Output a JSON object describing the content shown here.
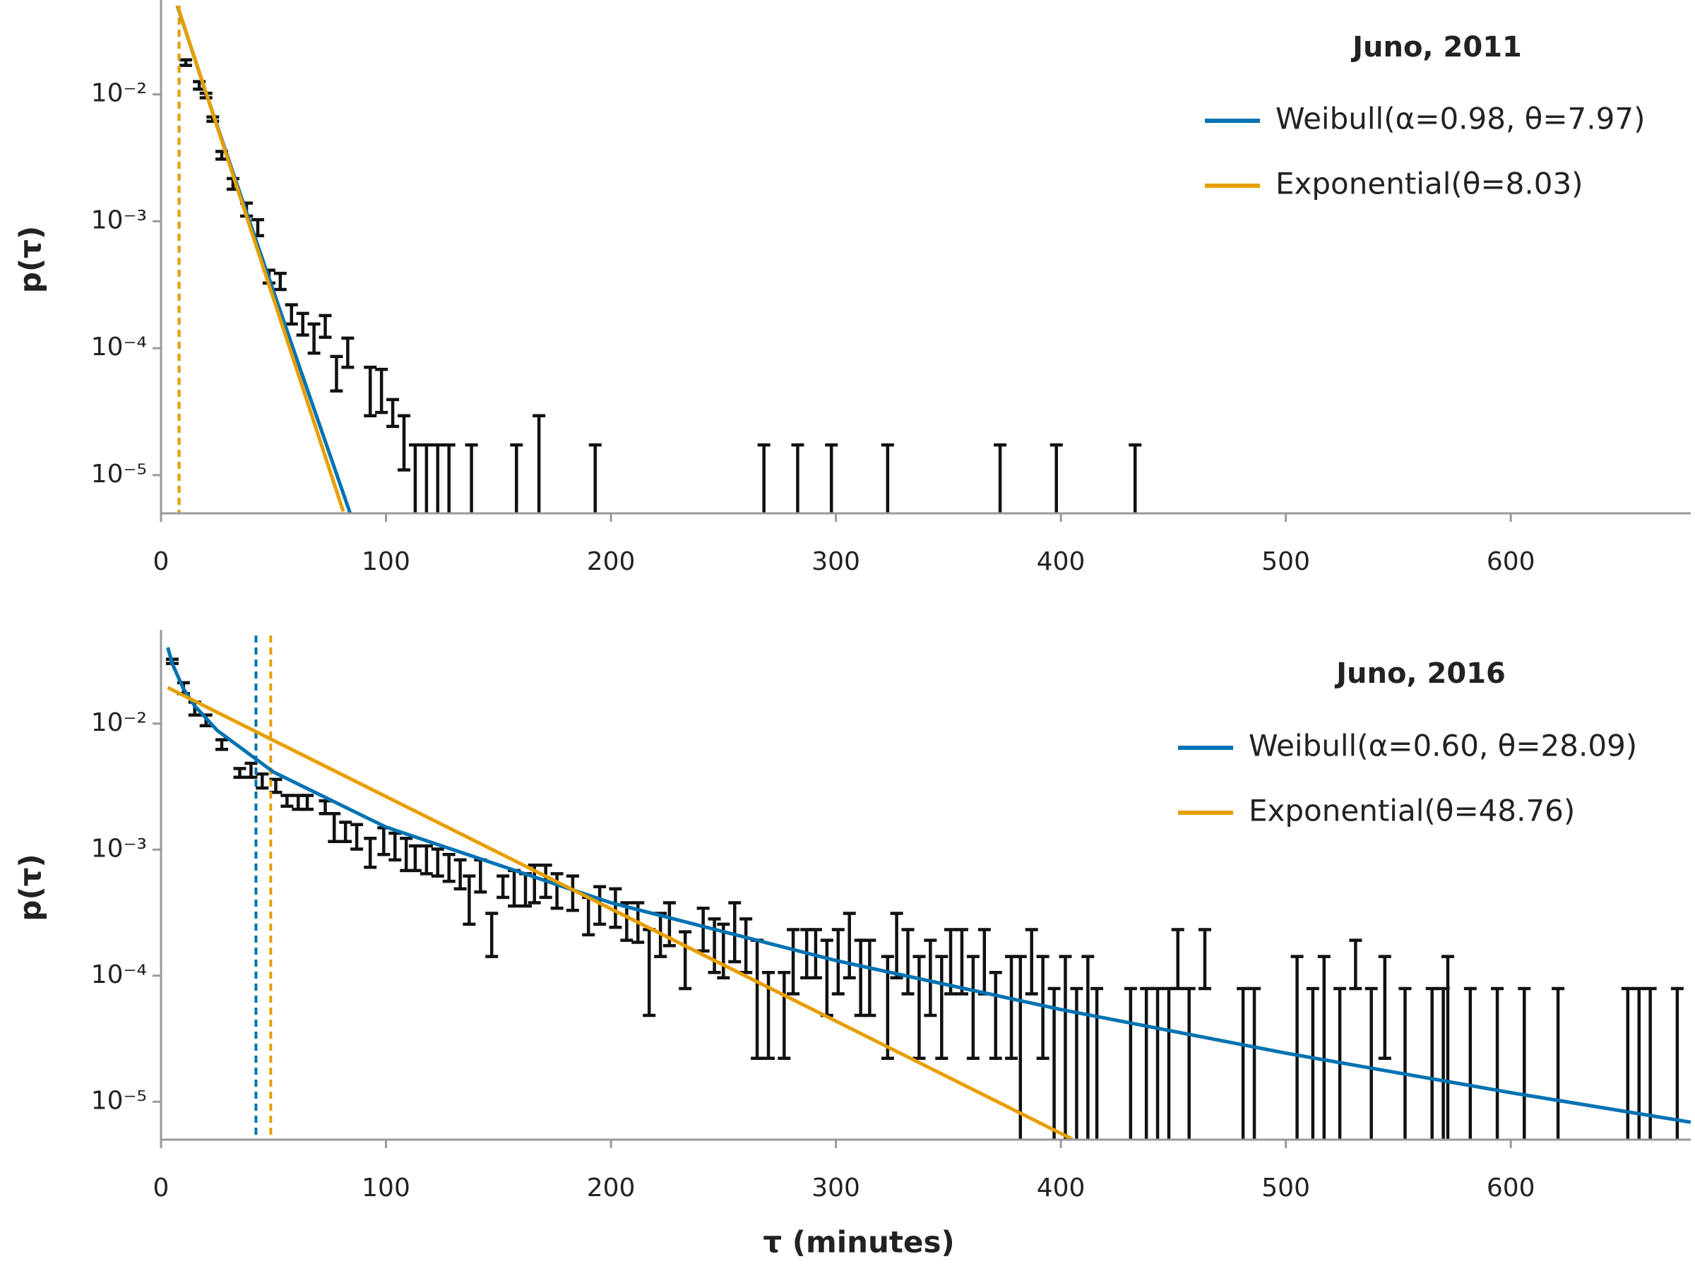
{
  "chart_data": [
    {
      "type": "line",
      "title": "Juno, 2011",
      "y_label": "p(τ)",
      "log_y": true,
      "xlim": [
        0,
        680
      ],
      "ylim": [
        5e-06,
        0.05
      ],
      "xticks": [
        0,
        100,
        200,
        300,
        400,
        500,
        600
      ],
      "yticks": [
        {
          "value": 1e-05,
          "label": "10⁻⁵"
        },
        {
          "value": 0.0001,
          "label": "10⁻⁴"
        },
        {
          "value": 0.001,
          "label": "10⁻³"
        },
        {
          "value": 0.01,
          "label": "10⁻²"
        }
      ],
      "series": [
        {
          "name": "Weibull(α=0.98, θ=7.97)",
          "color": "#0072b2",
          "mean": 8.04,
          "x": [
            5,
            20,
            40,
            60,
            84
          ],
          "values": [
            0.0659,
            0.01027,
            0.000923,
            8.56e-05,
            5.05e-06
          ]
        },
        {
          "name": "Exponential(θ=8.03)",
          "color": "#e69f00",
          "mean": 8.03,
          "x": [
            5,
            81
          ],
          "values": [
            0.0668,
            5.18e-06
          ]
        }
      ],
      "error_bars": {
        "color": "#111111",
        "x": [
          11,
          17,
          20,
          23,
          27,
          32,
          38,
          43,
          48,
          53,
          58,
          63,
          68,
          73,
          78,
          83,
          93,
          98,
          103,
          108,
          113,
          118,
          123,
          128,
          138,
          158,
          168,
          193,
          268,
          283,
          298,
          323,
          373,
          398,
          433
        ],
        "upper": [
          0.0187,
          0.0126,
          0.0102,
          0.00664,
          0.00355,
          0.00217,
          0.00139,
          0.00103,
          0.000412,
          0.000389,
          0.00022,
          0.000188,
          0.000155,
          0.000181,
          8.61e-05,
          0.00012,
          7.08e-05,
          6.81e-05,
          3.94e-05,
          2.94e-05,
          1.73e-05,
          1.73e-05,
          1.73e-05,
          1.73e-05,
          1.73e-05,
          1.73e-05,
          2.94e-05,
          1.73e-05,
          1.73e-05,
          1.73e-05,
          1.73e-05,
          1.73e-05,
          1.73e-05,
          1.73e-05,
          1.73e-05
        ],
        "lower": [
          0.0169,
          0.011,
          0.0094,
          0.00614,
          0.00309,
          0.00179,
          0.0011,
          0.000771,
          0.000326,
          0.00029,
          0.000155,
          0.000127,
          9.14e-05,
          0.000122,
          4.61e-05,
          7.08e-05,
          2.94e-05,
          3.12e-05,
          2.42e-05,
          1.1e-05,
          null,
          null,
          null,
          null,
          null,
          null,
          null,
          null,
          null,
          null,
          null,
          null,
          null,
          null,
          null
        ]
      }
    },
    {
      "type": "line",
      "title": "Juno, 2016",
      "y_label": "p(τ)",
      "x_label": "τ (minutes)",
      "log_y": true,
      "xlim": [
        0,
        680
      ],
      "ylim": [
        5e-06,
        0.05
      ],
      "xticks": [
        0,
        100,
        200,
        300,
        400,
        500,
        600
      ],
      "yticks": [
        {
          "value": 1e-05,
          "label": "10⁻⁵"
        },
        {
          "value": 0.0001,
          "label": "10⁻⁴"
        },
        {
          "value": 0.001,
          "label": "10⁻³"
        },
        {
          "value": 0.01,
          "label": "10⁻²"
        }
      ],
      "series": [
        {
          "name": "Weibull(α=0.60, θ=28.09)",
          "color": "#0072b2",
          "mean": 42.2,
          "x": [
            3,
            5,
            10,
            15,
            25,
            50,
            100,
            200,
            300,
            400,
            500,
            600,
            680
          ],
          "values": [
            0.0402,
            0.02986,
            0.01886,
            0.0138,
            0.00882,
            0.00413,
            0.001509,
            0.000379,
            0.0001318,
            5.39e-05,
            2.43e-05,
            1.18e-05,
            6.88e-06
          ]
        },
        {
          "name": "Exponential(θ=48.76)",
          "color": "#e69f00",
          "mean": 48.76,
          "x": [
            3,
            405
          ],
          "values": [
            0.0193,
            5.06e-06
          ]
        }
      ],
      "error_bars": {
        "color": "#111111",
        "x": [
          5,
          10,
          15,
          20,
          27,
          35,
          40,
          45,
          51,
          56,
          61,
          65,
          73,
          77,
          82,
          87,
          93,
          99,
          104,
          109,
          113,
          118,
          123,
          128,
          133,
          137,
          142,
          147,
          152,
          157,
          162,
          166,
          171,
          176,
          183,
          190,
          195,
          202,
          207,
          212,
          217,
          222,
          226,
          233,
          241,
          246,
          250,
          255,
          260,
          265,
          270,
          277,
          281,
          287,
          291,
          296,
          301,
          306,
          311,
          315,
          323,
          327,
          332,
          337,
          342,
          347,
          351,
          356,
          361,
          366,
          371,
          378,
          382,
          387,
          392,
          397,
          402,
          407,
          412,
          416,
          431,
          438,
          443,
          448,
          452,
          457,
          464,
          481,
          486,
          505,
          512,
          517,
          524,
          531,
          538,
          544,
          553,
          565,
          570,
          572,
          582,
          594,
          606,
          621,
          652,
          657,
          662,
          674
        ],
        "upper": [
          0.0324,
          0.0211,
          0.0148,
          0.0117,
          0.00745,
          0.0044,
          0.00484,
          0.00398,
          0.00361,
          0.00269,
          0.00269,
          0.00269,
          0.00244,
          0.00193,
          0.00165,
          0.00158,
          0.00123,
          0.00149,
          0.00135,
          0.00123,
          0.00107,
          0.00107,
          0.00101,
          0.000916,
          0.00083,
          0.000618,
          0.00083,
          0.000312,
          0.000618,
          0.000683,
          0.000644,
          0.000753,
          0.000753,
          0.000644,
          0.000618,
          0.000418,
          0.000508,
          0.000489,
          0.000379,
          0.000379,
          0.000232,
          0.000312,
          0.000379,
          0.000223,
          0.000343,
          0.000282,
          0.000256,
          0.000379,
          0.000282,
          0.000191,
          0.000106,
          0.000106,
          0.000232,
          0.000232,
          0.000232,
          0.000191,
          0.000232,
          0.000312,
          0.000191,
          0.000191,
          0.000142,
          0.000312,
          0.000232,
          0.000142,
          0.000191,
          0.000142,
          0.000232,
          0.000232,
          0.000142,
          0.000232,
          0.000106,
          0.000142,
          0.000142,
          0.000232,
          0.000142,
          7.91e-05,
          0.000142,
          7.91e-05,
          0.000142,
          7.91e-05,
          7.91e-05,
          7.91e-05,
          7.91e-05,
          7.91e-05,
          0.000232,
          7.91e-05,
          0.000232,
          7.91e-05,
          7.91e-05,
          0.000142,
          7.91e-05,
          0.000142,
          7.91e-05,
          0.000191,
          7.91e-05,
          0.000142,
          7.91e-05,
          7.91e-05,
          7.91e-05,
          0.000142,
          7.91e-05,
          7.91e-05,
          7.91e-05,
          7.91e-05,
          7.91e-05,
          7.91e-05,
          7.91e-05,
          7.91e-05
        ],
        "lower": [
          0.03,
          0.0173,
          0.0117,
          0.00962,
          0.00625,
          0.00375,
          0.00375,
          0.00308,
          0.00285,
          0.00221,
          0.00209,
          0.00209,
          0.00193,
          0.00116,
          0.00116,
          0.00101,
          0.000724,
          0.000916,
          0.00083,
          0.000683,
          0.000683,
          0.000644,
          0.000618,
          0.000561,
          0.000489,
          0.000256,
          0.000461,
          0.000142,
          0.000418,
          0.000357,
          0.000357,
          0.000379,
          0.000418,
          0.000343,
          0.00033,
          0.000211,
          0.000256,
          0.000242,
          0.000191,
          0.000184,
          4.84e-05,
          0.000142,
          0.000173,
          7.91e-05,
          0.000157,
          0.000106,
          9.62e-05,
          0.000129,
          0.000106,
          2.21e-05,
          2.21e-05,
          2.21e-05,
          7.17e-05,
          9.62e-05,
          9.62e-05,
          4.84e-05,
          7.17e-05,
          9.62e-05,
          4.84e-05,
          4.84e-05,
          2.21e-05,
          9.62e-05,
          7.17e-05,
          2.21e-05,
          4.84e-05,
          2.21e-05,
          7.17e-05,
          7.17e-05,
          2.21e-05,
          7.17e-05,
          2.21e-05,
          2.21e-05,
          null,
          7.17e-05,
          2.21e-05,
          null,
          null,
          null,
          null,
          null,
          null,
          null,
          null,
          null,
          7.91e-05,
          null,
          7.91e-05,
          null,
          null,
          null,
          null,
          null,
          null,
          7.91e-05,
          null,
          2.21e-05,
          null,
          null,
          null,
          null,
          null,
          null,
          null,
          null,
          null,
          null,
          null,
          null
        ]
      }
    }
  ]
}
